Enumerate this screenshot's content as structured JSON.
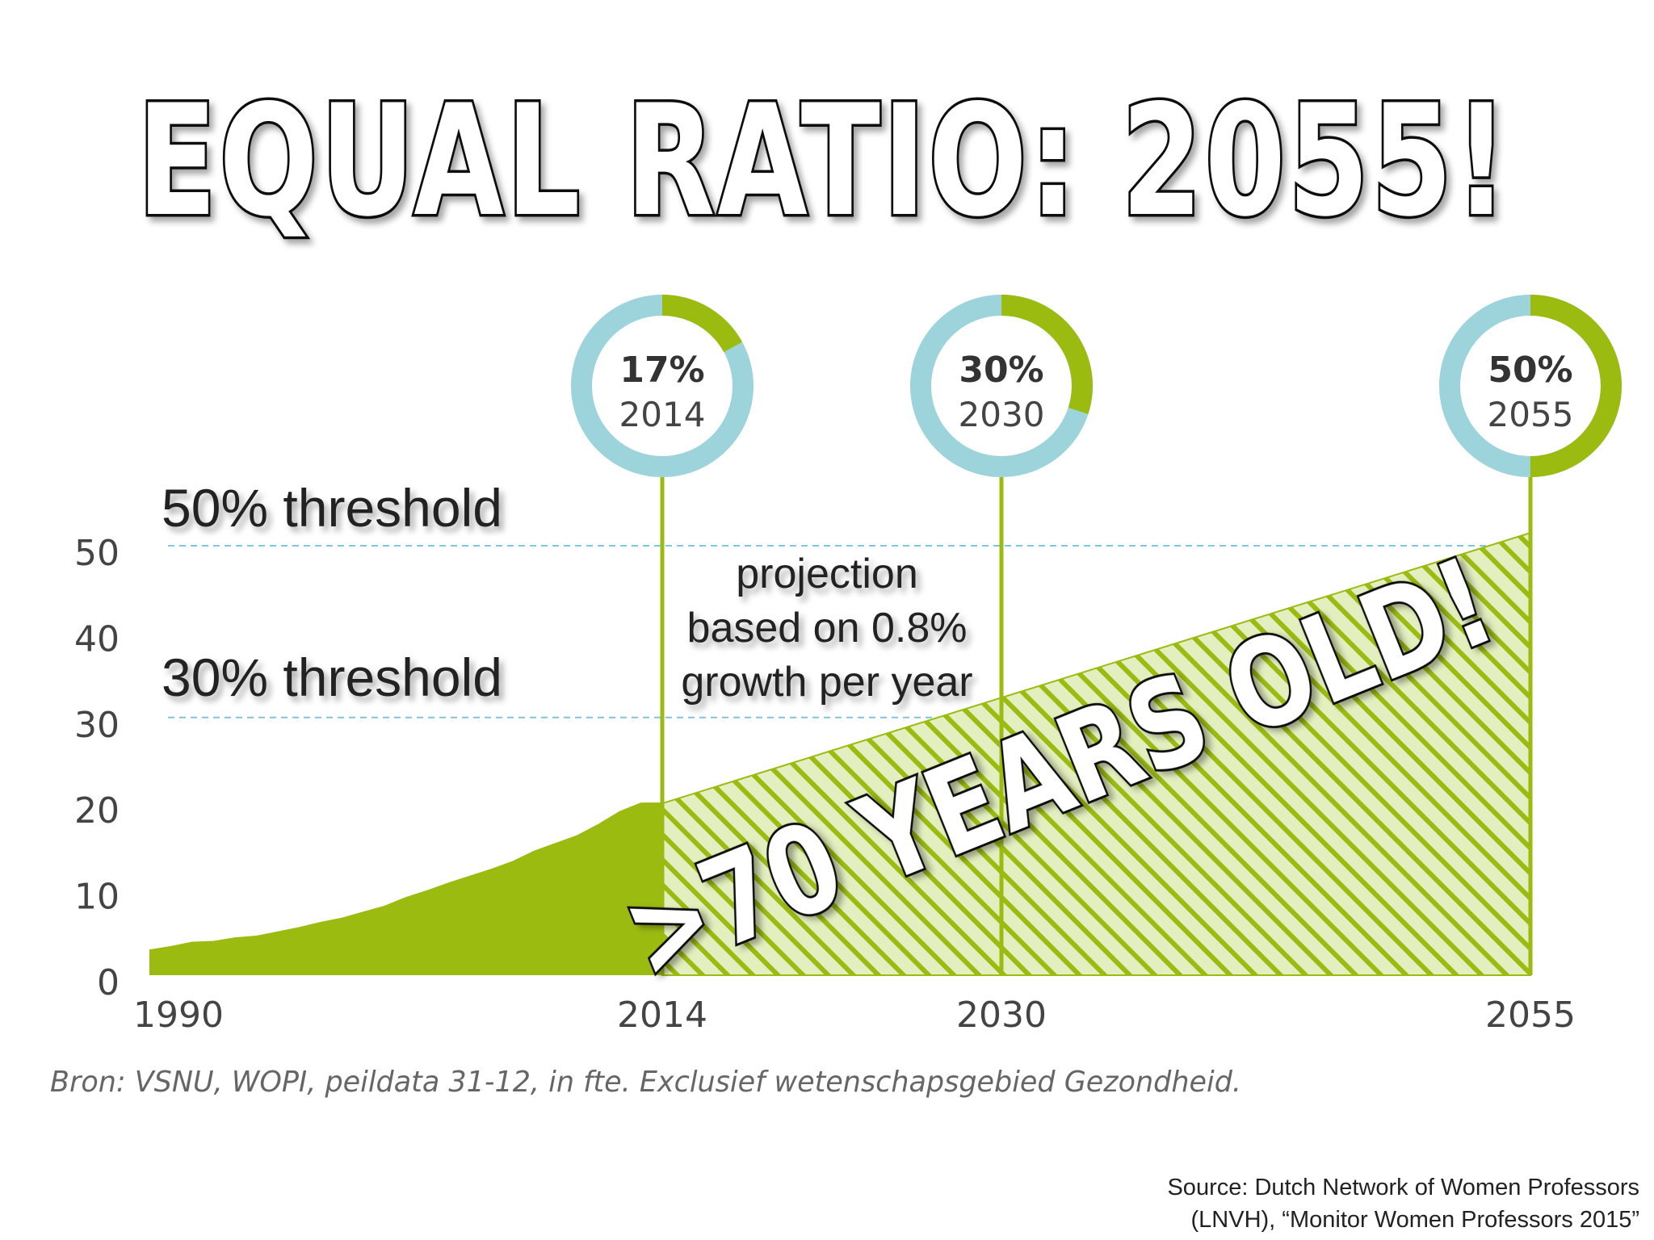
{
  "headline": "EQUAL RATIO: 2055!",
  "stamp": ">70 YEARS OLD!",
  "threshold_labels": {
    "t50": "50% threshold",
    "t30": "30% threshold"
  },
  "projection_note": [
    "projection",
    "based on 0.8%",
    "growth per year"
  ],
  "milestones": [
    {
      "pct_label": "17%",
      "year_label": "2014",
      "fraction": 0.17
    },
    {
      "pct_label": "30%",
      "year_label": "2030",
      "fraction": 0.3
    },
    {
      "pct_label": "50%",
      "year_label": "2055",
      "fraction": 0.5
    }
  ],
  "bron": "Bron: VSNU, WOPI, peildata 31-12, in fte. Exclusief wetenschapsgebied Gezondheid.",
  "source": [
    "Source: Dutch Network of Women Professors",
    "(LNVH), “Monitor Women Professors 2015”"
  ],
  "colors": {
    "green": "#9bbb11",
    "light_green": "#e3efbe",
    "ring_blue": "#9dd4dc",
    "dash_blue": "#7ec6de"
  },
  "chart_data": {
    "type": "area",
    "x_tick_labels": [
      "1990",
      "2014",
      "2030",
      "2055"
    ],
    "y_tick_labels": [
      "0",
      "10",
      "20",
      "30",
      "40",
      "50"
    ],
    "ylim": [
      0,
      50
    ],
    "thresholds": [
      50,
      30
    ],
    "series": [
      {
        "x": [
          1990,
          1991,
          1992,
          1993,
          1994,
          1995,
          1996,
          1997,
          1998,
          1999,
          2000,
          2001,
          2002,
          2003,
          2004,
          2005,
          2006,
          2007,
          2008,
          2009,
          2010,
          2011,
          2012,
          2013,
          2014
        ],
        "y": [
          3.0,
          3.4,
          3.9,
          4.0,
          4.4,
          4.6,
          5.1,
          5.6,
          6.2,
          6.7,
          7.4,
          8.1,
          9.1,
          9.9,
          10.8,
          11.6,
          12.4,
          13.3,
          14.5,
          15.4,
          16.3,
          17.6,
          19.1,
          20.1,
          17.0
        ]
      },
      {
        "x": [
          2014,
          2030,
          2055
        ],
        "y": [
          17,
          30,
          50
        ]
      }
    ]
  }
}
